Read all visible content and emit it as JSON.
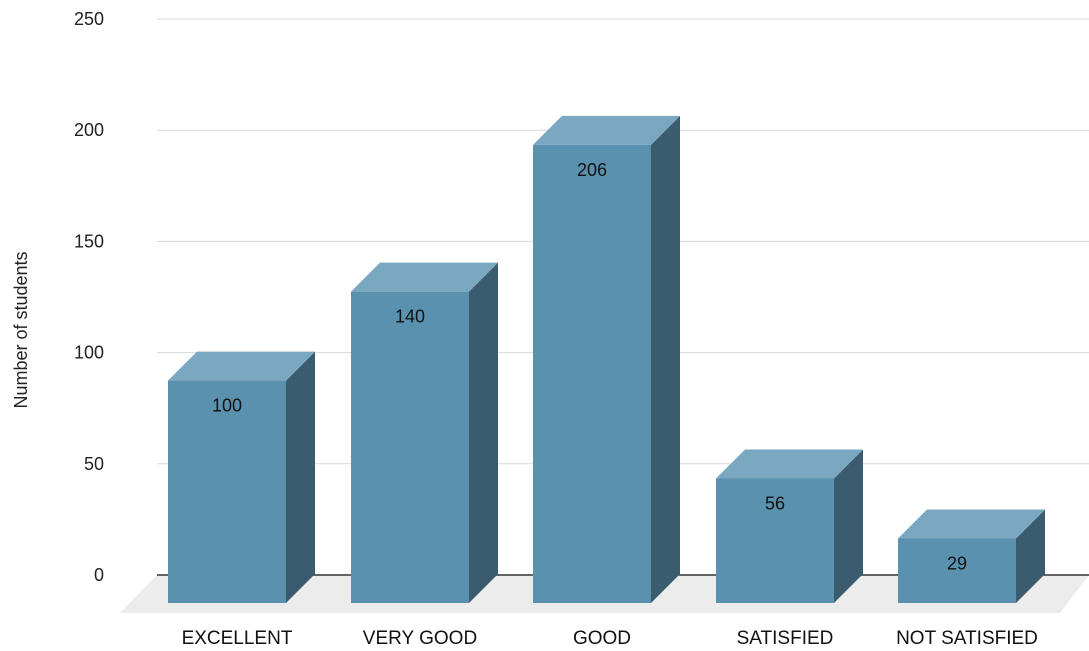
{
  "chart_data": {
    "type": "bar",
    "categories": [
      "EXCELLENT",
      "VERY GOOD",
      "GOOD",
      "SATISFIED",
      "NOT SATISFIED"
    ],
    "values": [
      100,
      140,
      206,
      56,
      29
    ],
    "data_labels": [
      "100",
      "140",
      "206",
      "56",
      "29"
    ],
    "ylabel": "Number of students",
    "ylim": [
      0,
      250
    ],
    "yticks": [
      0,
      50,
      100,
      150,
      200,
      250
    ],
    "grid": true,
    "legend": "none",
    "style": "3d",
    "colors": {
      "bar_front": "#5a91ae",
      "bar_top": "#7aa8c0",
      "bar_side": "#3a5c6e",
      "floor": "#ececec",
      "gridline": "#d9d9d9",
      "baseline": "#333333"
    }
  }
}
